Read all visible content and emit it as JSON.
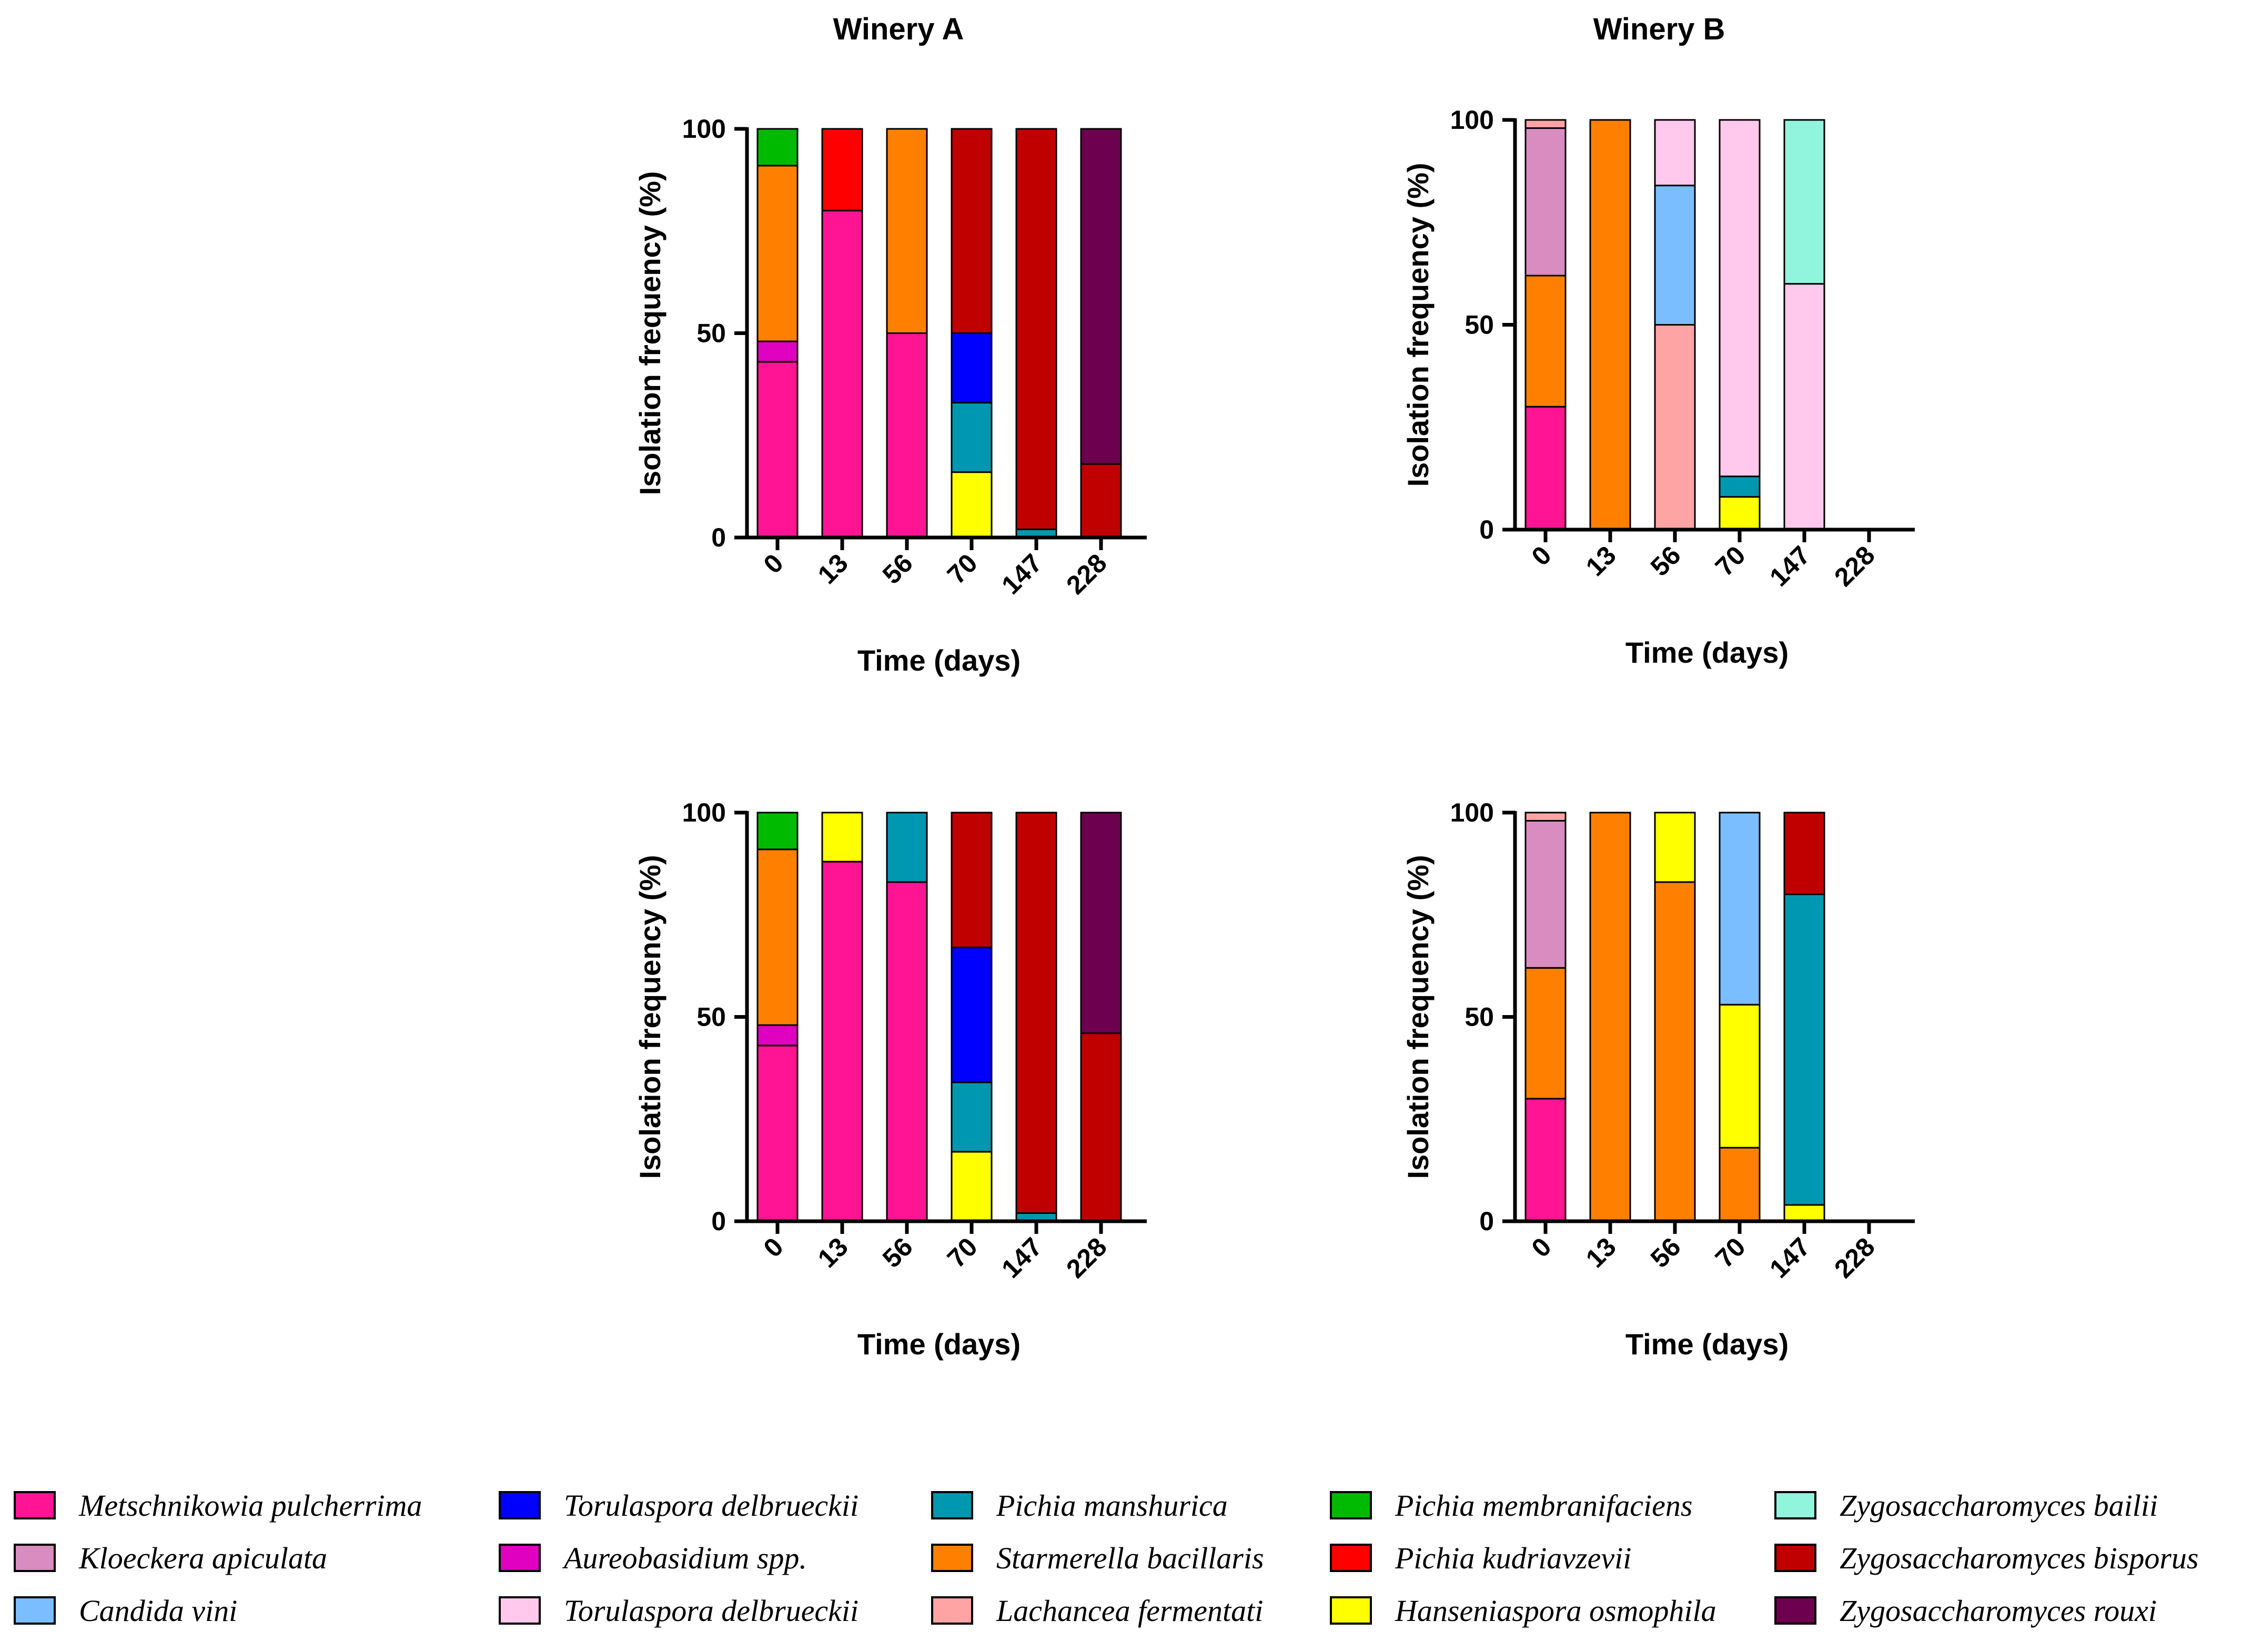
{
  "column_titles": [
    "Winery A",
    "Winery B"
  ],
  "species": [
    {
      "name": "Metschnikowia pulcherrima",
      "color": "#FF1493"
    },
    {
      "name": "Kloeckera apiculata",
      "color": "#D98CC0"
    },
    {
      "name": "Candida vini",
      "color": "#7ABEFF"
    },
    {
      "name": "Torulaspora delbrueckii",
      "color": "#0000FF"
    },
    {
      "name": "Aureobasidium spp.",
      "color": "#E000C0"
    },
    {
      "name": "Torulaspora delbrueckii",
      "color": "#FFC8EC"
    },
    {
      "name": "Pichia manshurica",
      "color": "#0098B0"
    },
    {
      "name": "Starmerella bacillaris",
      "color": "#FF8000"
    },
    {
      "name": "Lachancea fermentati",
      "color": "#FFA4A4"
    },
    {
      "name": "Pichia membranifaciens",
      "color": "#00BA00"
    },
    {
      "name": "Pichia kudriavzevii",
      "color": "#FF0000"
    },
    {
      "name": "Hanseniaspora osmophila",
      "color": "#FFFF00"
    },
    {
      "name": "Zygosaccharomyces bailii",
      "color": "#90F5DC"
    },
    {
      "name": "Zygosaccharomyces bisporus",
      "color": "#C00000"
    },
    {
      "name": "Zygosaccharomyces rouxi",
      "color": "#6E0050"
    }
  ],
  "chart_data": [
    {
      "id": "A-top",
      "type": "bar",
      "stacked": true,
      "categories": [
        "0",
        "13",
        "56",
        "70",
        "147",
        "228"
      ],
      "xlabel": "Time (days)",
      "ylabel": "Isolation frequency (%)",
      "ylim": [
        0,
        100
      ],
      "yticks": [
        "0",
        "50",
        "100"
      ],
      "stacks": [
        [
          {
            "s": 0,
            "v": 43
          },
          {
            "s": 4,
            "v": 5
          },
          {
            "s": 7,
            "v": 43
          },
          {
            "s": 9,
            "v": 9
          }
        ],
        [
          {
            "s": 0,
            "v": 80
          },
          {
            "s": 10,
            "v": 20
          }
        ],
        [
          {
            "s": 0,
            "v": 50
          },
          {
            "s": 7,
            "v": 50
          }
        ],
        [
          {
            "s": 11,
            "v": 16
          },
          {
            "s": 6,
            "v": 17
          },
          {
            "s": 3,
            "v": 17
          },
          {
            "s": 13,
            "v": 50
          }
        ],
        [
          {
            "s": 6,
            "v": 2
          },
          {
            "s": 13,
            "v": 98
          }
        ],
        [
          {
            "s": 13,
            "v": 18
          },
          {
            "s": 14,
            "v": 82
          }
        ]
      ]
    },
    {
      "id": "B-top",
      "type": "bar",
      "stacked": true,
      "categories": [
        "0",
        "13",
        "56",
        "70",
        "147",
        "228"
      ],
      "xlabel": "Time (days)",
      "ylabel": "Isolation frequency (%)",
      "ylim": [
        0,
        100
      ],
      "yticks": [
        "0",
        "50",
        "100"
      ],
      "stacks": [
        [
          {
            "s": 0,
            "v": 30
          },
          {
            "s": 7,
            "v": 32
          },
          {
            "s": 1,
            "v": 36
          },
          {
            "s": 8,
            "v": 2
          }
        ],
        [
          {
            "s": 7,
            "v": 100
          }
        ],
        [
          {
            "s": 8,
            "v": 50
          },
          {
            "s": 2,
            "v": 34
          },
          {
            "s": 5,
            "v": 16
          }
        ],
        [
          {
            "s": 11,
            "v": 8
          },
          {
            "s": 6,
            "v": 5
          },
          {
            "s": 5,
            "v": 87
          }
        ],
        [
          {
            "s": 5,
            "v": 60
          },
          {
            "s": 12,
            "v": 40
          }
        ],
        []
      ]
    },
    {
      "id": "A-bottom",
      "type": "bar",
      "stacked": true,
      "categories": [
        "0",
        "13",
        "56",
        "70",
        "147",
        "228"
      ],
      "xlabel": "Time (days)",
      "ylabel": "Isolation frequency (%)",
      "ylim": [
        0,
        100
      ],
      "yticks": [
        "0",
        "50",
        "100"
      ],
      "stacks": [
        [
          {
            "s": 0,
            "v": 43
          },
          {
            "s": 4,
            "v": 5
          },
          {
            "s": 7,
            "v": 43
          },
          {
            "s": 9,
            "v": 9
          }
        ],
        [
          {
            "s": 0,
            "v": 88
          },
          {
            "s": 11,
            "v": 12
          }
        ],
        [
          {
            "s": 0,
            "v": 83
          },
          {
            "s": 6,
            "v": 17
          }
        ],
        [
          {
            "s": 11,
            "v": 17
          },
          {
            "s": 6,
            "v": 17
          },
          {
            "s": 3,
            "v": 33
          },
          {
            "s": 13,
            "v": 33
          }
        ],
        [
          {
            "s": 6,
            "v": 2
          },
          {
            "s": 13,
            "v": 98
          }
        ],
        [
          {
            "s": 13,
            "v": 46
          },
          {
            "s": 14,
            "v": 54
          }
        ]
      ]
    },
    {
      "id": "B-bottom",
      "type": "bar",
      "stacked": true,
      "categories": [
        "0",
        "13",
        "56",
        "70",
        "147",
        "228"
      ],
      "xlabel": "Time (days)",
      "ylabel": "Isolation frequency (%)",
      "ylim": [
        0,
        100
      ],
      "yticks": [
        "0",
        "50",
        "100"
      ],
      "stacks": [
        [
          {
            "s": 0,
            "v": 30
          },
          {
            "s": 7,
            "v": 32
          },
          {
            "s": 1,
            "v": 36
          },
          {
            "s": 8,
            "v": 2
          }
        ],
        [
          {
            "s": 7,
            "v": 100
          }
        ],
        [
          {
            "s": 7,
            "v": 83
          },
          {
            "s": 11,
            "v": 17
          }
        ],
        [
          {
            "s": 7,
            "v": 18
          },
          {
            "s": 11,
            "v": 35
          },
          {
            "s": 2,
            "v": 47
          }
        ],
        [
          {
            "s": 11,
            "v": 4
          },
          {
            "s": 6,
            "v": 76
          },
          {
            "s": 13,
            "v": 20
          }
        ],
        []
      ]
    }
  ]
}
